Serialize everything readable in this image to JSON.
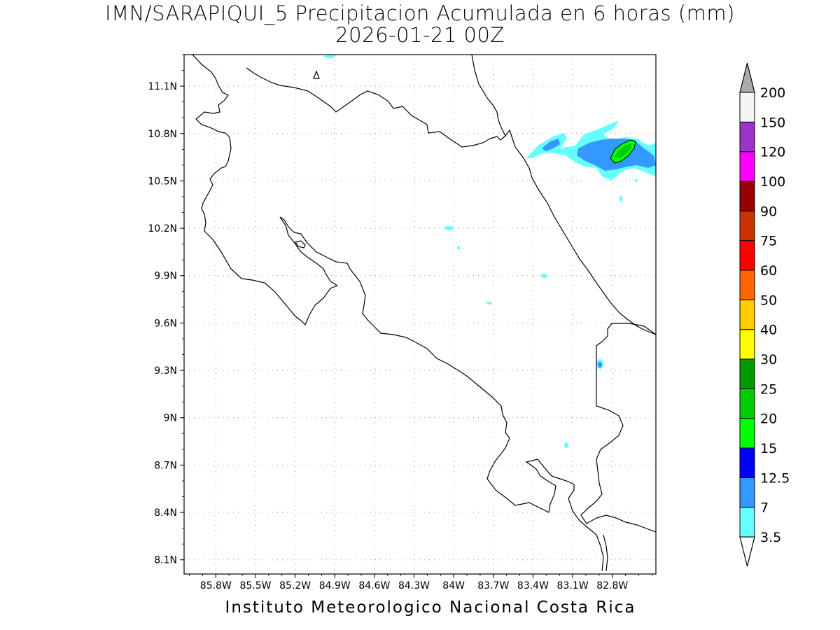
{
  "title_line1": "IMN/SARAPIQUI_5 Precipitacion Acumulada en 6 horas (mm)",
  "title_line2": "2026-01-21 00Z",
  "footer": "Instituto Meteorologico Nacional Costa Rica",
  "map": {
    "lon_range": [
      -86.04,
      -82.47
    ],
    "lat_range": [
      8.01,
      11.3
    ],
    "x_ticks": [
      "85.8W",
      "85.5W",
      "85.2W",
      "84.9W",
      "84.6W",
      "84.3W",
      "84W",
      "83.7W",
      "83.4W",
      "83.1W",
      "82.8W"
    ],
    "x_tick_values": [
      -85.8,
      -85.5,
      -85.2,
      -84.9,
      -84.6,
      -84.3,
      -84.0,
      -83.7,
      -83.4,
      -83.1,
      -82.8
    ],
    "y_ticks": [
      "11.1N",
      "10.8N",
      "10.5N",
      "10.2N",
      "9.9N",
      "9.6N",
      "9.3N",
      "9N",
      "8.7N",
      "8.4N",
      "8.1N"
    ],
    "y_tick_values": [
      11.1,
      10.8,
      10.5,
      10.2,
      9.9,
      9.6,
      9.3,
      9.0,
      8.7,
      8.4,
      8.1
    ],
    "grid": "dotted"
  },
  "colorbar": {
    "levels": [
      "3.5",
      "7",
      "12.5",
      "15",
      "20",
      "25",
      "30",
      "40",
      "50",
      "60",
      "75",
      "90",
      "100",
      "120",
      "150",
      "200"
    ],
    "colors": [
      "#ffffff",
      "#66ffff",
      "#3399ff",
      "#0000ff",
      "#00ff00",
      "#00cc00",
      "#009900",
      "#ffff00",
      "#ffcc00",
      "#ff6600",
      "#ff0000",
      "#cc3300",
      "#990000",
      "#ff00ff",
      "#9933cc",
      "#f5f5f5"
    ],
    "top_arrow_color": "#aaaaaa",
    "bottom_arrow_color": "#ffffff"
  },
  "colors": {
    "light_cyan": "#66ffff",
    "medium_blue": "#3399ff",
    "green": "#00cc00",
    "coast": "#000000"
  }
}
